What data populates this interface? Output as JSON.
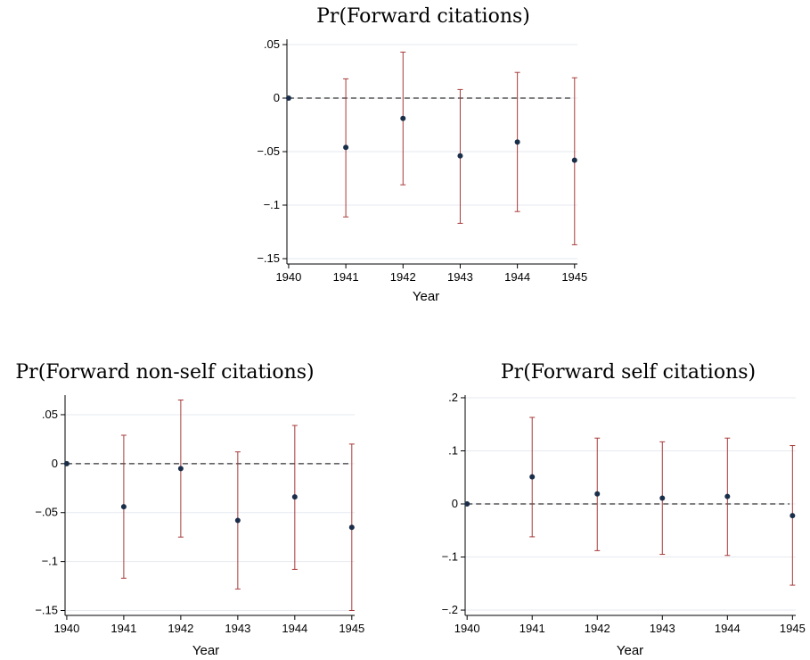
{
  "colors": {
    "point": "#1a2e4a",
    "ci": "#a83a3a",
    "grid": "#e6eaef",
    "reference": "#333333"
  },
  "chart_data": [
    {
      "type": "scatter",
      "title": "Pr(Forward citations)",
      "xlabel": "Year",
      "ylabel": "",
      "x": [
        1940,
        1941,
        1942,
        1943,
        1944,
        1945
      ],
      "y": [
        0,
        -0.046,
        -0.019,
        -0.054,
        -0.041,
        -0.058
      ],
      "ci_low": [
        null,
        -0.111,
        -0.081,
        -0.117,
        -0.106,
        -0.137
      ],
      "ci_high": [
        null,
        0.018,
        0.043,
        0.008,
        0.024,
        0.019
      ],
      "yticks": [
        0.05,
        0,
        -0.05,
        -0.1,
        -0.15
      ],
      "ytick_labels": [
        ".05",
        "0",
        "−.05",
        "−.1",
        "−.15"
      ],
      "xticks": [
        "1940",
        "1941",
        "1942",
        "1943",
        "1944",
        "1945"
      ],
      "ylim": [
        -0.155,
        0.055
      ],
      "xlim": [
        1939.97,
        1945.05
      ],
      "reference_line_y": 0,
      "grid": true
    },
    {
      "type": "scatter",
      "title": "Pr(Forward non-self citations)",
      "xlabel": "Year",
      "ylabel": "",
      "x": [
        1940,
        1941,
        1942,
        1943,
        1944,
        1945
      ],
      "y": [
        0,
        -0.044,
        -0.005,
        -0.058,
        -0.034,
        -0.065
      ],
      "ci_low": [
        null,
        -0.117,
        -0.075,
        -0.128,
        -0.108,
        -0.15
      ],
      "ci_high": [
        null,
        0.029,
        0.065,
        0.012,
        0.039,
        0.02
      ],
      "yticks": [
        0.05,
        0,
        -0.05,
        -0.1,
        -0.15
      ],
      "ytick_labels": [
        ".05",
        "0",
        "−.05",
        "−.1",
        "−.15"
      ],
      "xticks": [
        "1940",
        "1941",
        "1942",
        "1943",
        "1944",
        "1945"
      ],
      "ylim": [
        -0.155,
        0.07
      ],
      "xlim": [
        1939.97,
        1945.05
      ],
      "reference_line_y": 0,
      "grid": true
    },
    {
      "type": "scatter",
      "title": "Pr(Forward self citations)",
      "xlabel": "Year",
      "ylabel": "",
      "x": [
        1940,
        1941,
        1942,
        1943,
        1944,
        1945
      ],
      "y": [
        0,
        0.051,
        0.019,
        0.011,
        0.014,
        -0.022
      ],
      "ci_low": [
        null,
        -0.062,
        -0.088,
        -0.095,
        -0.097,
        -0.153
      ],
      "ci_high": [
        null,
        0.163,
        0.124,
        0.117,
        0.124,
        0.11
      ],
      "yticks": [
        0.2,
        0.1,
        0,
        -0.1,
        -0.2
      ],
      "ytick_labels": [
        ".2",
        ".1",
        "0",
        "−.1",
        "−.2"
      ],
      "xticks": [
        "1940",
        "1941",
        "1942",
        "1943",
        "1944",
        "1945"
      ],
      "ylim": [
        -0.21,
        0.205
      ],
      "xlim": [
        1939.97,
        1945.05
      ],
      "reference_line_y": 0,
      "grid": true
    }
  ]
}
